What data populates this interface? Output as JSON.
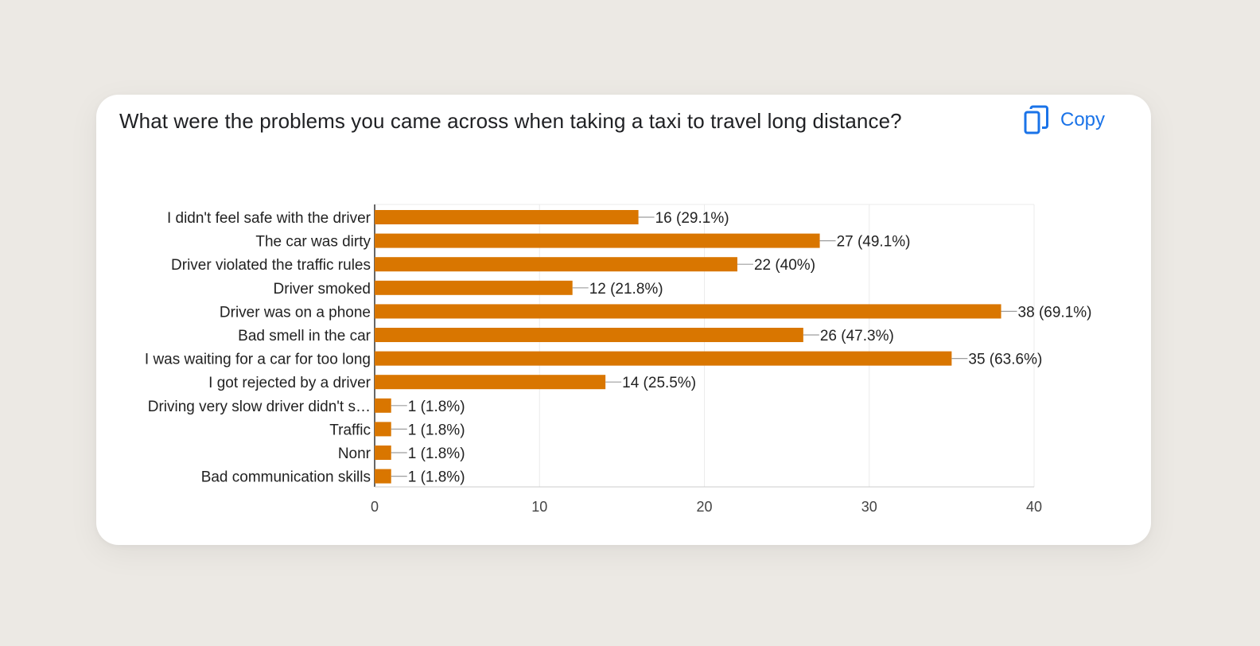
{
  "question": {
    "text": "What were the problems you came across when taking a taxi to travel long distance?"
  },
  "copy_button": {
    "label": "Copy",
    "icon": "copy-icon"
  },
  "colors": {
    "bar": "#d97600",
    "accent": "#1a73e8",
    "grid": "#ebebeb",
    "axis": "#333333"
  },
  "chart_data": {
    "type": "bar",
    "orientation": "horizontal",
    "categories": [
      "I didn't feel safe with the driver",
      "The car was dirty",
      "Driver violated the traffic rules",
      "Driver smoked",
      "Driver was on a phone",
      "Bad smell in the car",
      "I was waiting for a car for too long",
      "I got rejected by a driver",
      "Driving very slow driver didn't s…",
      "Traffic",
      "Nonr",
      "Bad communication skills"
    ],
    "values": [
      16,
      27,
      22,
      12,
      38,
      26,
      35,
      14,
      1,
      1,
      1,
      1
    ],
    "data_labels": [
      "16 (29.1%)",
      "27 (49.1%)",
      "22 (40%)",
      "12 (21.8%)",
      "38 (69.1%)",
      "26 (47.3%)",
      "35 (63.6%)",
      "14 (25.5%)",
      "1 (1.8%)",
      "1 (1.8%)",
      "1 (1.8%)",
      "1 (1.8%)"
    ],
    "xlim": [
      0,
      40
    ],
    "xticks": [
      0,
      10,
      20,
      30,
      40
    ],
    "xtick_labels": [
      "0",
      "10",
      "20",
      "30",
      "40"
    ],
    "grid": true
  }
}
